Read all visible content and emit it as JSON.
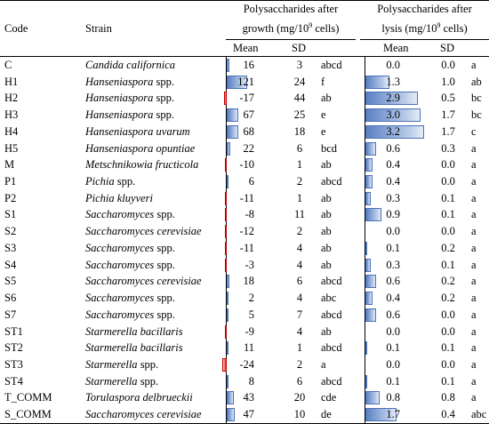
{
  "header": {
    "code": "Code",
    "strain": "Strain",
    "group1_line1": "Polysaccharides after",
    "group1_line2_pre": "growth (mg/10",
    "group1_sup": "9",
    "group1_line2_post": " cells)",
    "group2_line1": "Polysaccharides after",
    "group2_line2_pre": "lysis (mg/10",
    "group2_sup": "9",
    "group2_line2_post": " cells)",
    "mean1": "Mean",
    "sd1": "SD",
    "mean2": "Mean",
    "sd2": "SD"
  },
  "colors": {
    "positive_bar": "#5b80c4",
    "negative_bar": "#e02020"
  },
  "rows": [
    {
      "code": "C",
      "strain": "Candida californica",
      "italic_full": true,
      "g_mean": "16",
      "g_val": 16,
      "g_sd": "3",
      "g_sig": "abcd",
      "l_mean": "0.0",
      "l_val": 0.0,
      "l_sd": "0.0",
      "l_sig": "a"
    },
    {
      "code": "H1",
      "strain_it": "Hanseniaspora",
      "strain_rest": " spp.",
      "g_mean": "121",
      "g_val": 121,
      "g_sd": "24",
      "g_sig": "f",
      "l_mean": "1.3",
      "l_val": 1.3,
      "l_sd": "1.0",
      "l_sig": "ab"
    },
    {
      "code": "H2",
      "strain_it": "Hanseniaspora",
      "strain_rest": " spp.",
      "g_mean": "-17",
      "g_val": -17,
      "g_sd": "44",
      "g_sig": "ab",
      "l_mean": "2.9",
      "l_val": 2.9,
      "l_sd": "0.5",
      "l_sig": "bc"
    },
    {
      "code": "H3",
      "strain_it": "Hanseniaspora",
      "strain_rest": " spp.",
      "g_mean": "67",
      "g_val": 67,
      "g_sd": "25",
      "g_sig": "e",
      "l_mean": "3.0",
      "l_val": 3.0,
      "l_sd": "1.7",
      "l_sig": "bc"
    },
    {
      "code": "H4",
      "strain": "Hanseniaspora uvarum",
      "italic_full": true,
      "g_mean": "68",
      "g_val": 68,
      "g_sd": "18",
      "g_sig": "e",
      "l_mean": "3.2",
      "l_val": 3.2,
      "l_sd": "1.7",
      "l_sig": "c"
    },
    {
      "code": "H5",
      "strain": "Hanseniaspora opuntiae",
      "italic_full": true,
      "g_mean": "22",
      "g_val": 22,
      "g_sd": "6",
      "g_sig": "bcd",
      "l_mean": "0.6",
      "l_val": 0.6,
      "l_sd": "0.3",
      "l_sig": "a"
    },
    {
      "code": "M",
      "strain": "Metschnikowia fructicola",
      "italic_full": true,
      "g_mean": "-10",
      "g_val": -10,
      "g_sd": "1",
      "g_sig": "ab",
      "l_mean": "0.4",
      "l_val": 0.4,
      "l_sd": "0.0",
      "l_sig": "a"
    },
    {
      "code": "P1",
      "strain_it": "Pichia",
      "strain_rest": " spp.",
      "g_mean": "6",
      "g_val": 6,
      "g_sd": "2",
      "g_sig": "abcd",
      "l_mean": "0.4",
      "l_val": 0.4,
      "l_sd": "0.0",
      "l_sig": "a"
    },
    {
      "code": "P2",
      "strain": "Pichia kluyveri",
      "italic_full": true,
      "g_mean": "-11",
      "g_val": -11,
      "g_sd": "1",
      "g_sig": "ab",
      "l_mean": "0.3",
      "l_val": 0.3,
      "l_sd": "0.1",
      "l_sig": "a"
    },
    {
      "code": "S1",
      "strain_it": "Saccharomyces",
      "strain_rest": " spp.",
      "g_mean": "-8",
      "g_val": -8,
      "g_sd": "11",
      "g_sig": "ab",
      "l_mean": "0.9",
      "l_val": 0.9,
      "l_sd": "0.1",
      "l_sig": "a"
    },
    {
      "code": "S2",
      "strain": "Saccharomyces cerevisiae",
      "italic_full": true,
      "g_mean": "-12",
      "g_val": -12,
      "g_sd": "2",
      "g_sig": "ab",
      "l_mean": "0.0",
      "l_val": 0.0,
      "l_sd": "0.0",
      "l_sig": "a"
    },
    {
      "code": "S3",
      "strain_it": "Saccharomyces",
      "strain_rest": " spp.",
      "g_mean": "-11",
      "g_val": -11,
      "g_sd": "4",
      "g_sig": "ab",
      "l_mean": "0.1",
      "l_val": 0.1,
      "l_sd": "0.2",
      "l_sig": "a"
    },
    {
      "code": "S4",
      "strain_it": "Saccharomyces",
      "strain_rest": " spp.",
      "g_mean": "-3",
      "g_val": -3,
      "g_sd": "4",
      "g_sig": "ab",
      "l_mean": "0.3",
      "l_val": 0.3,
      "l_sd": "0.1",
      "l_sig": "a"
    },
    {
      "code": "S5",
      "strain": "Saccharomyces cerevisiae",
      "italic_full": true,
      "g_mean": "18",
      "g_val": 18,
      "g_sd": "6",
      "g_sig": "abcd",
      "l_mean": "0.6",
      "l_val": 0.6,
      "l_sd": "0.2",
      "l_sig": "a"
    },
    {
      "code": "S6",
      "strain_it": "Saccharomyces",
      "strain_rest": " spp.",
      "g_mean": "2",
      "g_val": 2,
      "g_sd": "4",
      "g_sig": "abc",
      "l_mean": "0.4",
      "l_val": 0.4,
      "l_sd": "0.2",
      "l_sig": "a"
    },
    {
      "code": "S7",
      "strain_it": "Saccharomyces",
      "strain_rest": " spp.",
      "g_mean": "5",
      "g_val": 5,
      "g_sd": "7",
      "g_sig": "abcd",
      "l_mean": "0.6",
      "l_val": 0.6,
      "l_sd": "0.0",
      "l_sig": "a"
    },
    {
      "code": "ST1",
      "strain": "Starmerella bacillaris",
      "italic_full": true,
      "g_mean": "-9",
      "g_val": -9,
      "g_sd": "4",
      "g_sig": "ab",
      "l_mean": "0.0",
      "l_val": 0.0,
      "l_sd": "0.0",
      "l_sig": "a"
    },
    {
      "code": "ST2",
      "strain": "Starmerella bacillaris",
      "italic_full": true,
      "g_mean": "11",
      "g_val": 11,
      "g_sd": "1",
      "g_sig": "abcd",
      "l_mean": "0.1",
      "l_val": 0.1,
      "l_sd": "0.1",
      "l_sig": "a"
    },
    {
      "code": "ST3",
      "strain_it": "Starmerella",
      "strain_rest": " spp.",
      "g_mean": "-24",
      "g_val": -24,
      "g_sd": "2",
      "g_sig": "a",
      "l_mean": "0.0",
      "l_val": 0.0,
      "l_sd": "0.0",
      "l_sig": "a"
    },
    {
      "code": "ST4",
      "strain_it": "Starmerella",
      "strain_rest": " spp.",
      "g_mean": "8",
      "g_val": 8,
      "g_sd": "6",
      "g_sig": "abcd",
      "l_mean": "0.1",
      "l_val": 0.1,
      "l_sd": "0.1",
      "l_sig": "a"
    },
    {
      "code": "T_COMM",
      "strain": "Torulaspora delbrueckii",
      "italic_full": true,
      "g_mean": "43",
      "g_val": 43,
      "g_sd": "20",
      "g_sig": "cde",
      "l_mean": "0.8",
      "l_val": 0.8,
      "l_sd": "0.8",
      "l_sig": "a"
    },
    {
      "code": "S_COMM",
      "strain": "Saccharomyces cerevisiae",
      "italic_full": true,
      "g_mean": "47",
      "g_val": 47,
      "g_sd": "10",
      "g_sig": "de",
      "l_mean": "1.7",
      "l_val": 1.7,
      "l_sd": "0.4",
      "l_sig": "abc"
    }
  ]
}
